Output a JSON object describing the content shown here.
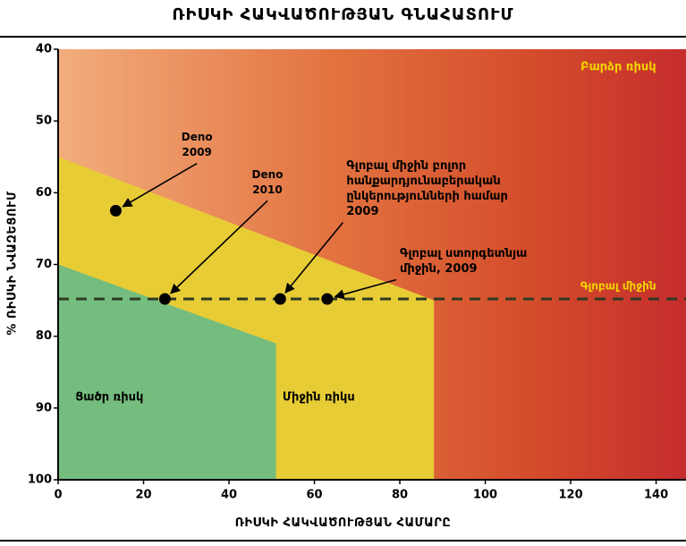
{
  "chart_data": {
    "type": "scatter",
    "title": "ՌԻՍԿԻ ՀԱԿՎԱԾՈՒԹՅԱՆ ԳՆԱՀԱՏՈՒՄ",
    "xlabel": "ՌԻՍԿԻ ՀԱԿՎԱԾՈՒԹՅԱՆ ՀԱՄԱՐԸ",
    "ylabel": "% ՌԻՍԿԻ ՆՎԱԶԵՑՈՒՄ",
    "xlim": [
      0,
      147
    ],
    "ylim": [
      40,
      100
    ],
    "y_inverted": true,
    "x_ticks": [
      0,
      20,
      40,
      60,
      80,
      100,
      120,
      140
    ],
    "y_ticks": [
      40,
      50,
      60,
      70,
      80,
      90,
      100
    ],
    "zones": [
      {
        "label": "Բարձր ռիսկ",
        "color": "#e06a3c"
      },
      {
        "label": "Միջին ռիկս",
        "color": "#e8cc36",
        "polygon": [
          [
            0,
            55
          ],
          [
            88,
            75
          ],
          [
            88,
            100
          ],
          [
            0,
            100
          ]
        ]
      },
      {
        "label": "Ցածր ռիսկ",
        "color": "#74bd7e",
        "polygon": [
          [
            0,
            70
          ],
          [
            51,
            81
          ],
          [
            51,
            100
          ],
          [
            0,
            100
          ]
        ]
      }
    ],
    "reference_line": {
      "label": "Գլոբալ միջին",
      "y": 74.8
    },
    "points": [
      {
        "label": [
          "Deno",
          "2009"
        ],
        "x": 13.5,
        "y": 62.5,
        "label_x": 32.5,
        "label_y": 52.3
      },
      {
        "label": [
          "Deno",
          "2010"
        ],
        "x": 25,
        "y": 74.8,
        "label_x": 49,
        "label_y": 57.5
      },
      {
        "label": [
          "Գլոբալ միջին բոլոր",
          "հանքարդյունաբերական",
          "ընկերությունների համար",
          "2009"
        ],
        "x": 52,
        "y": 74.8,
        "label_x": 67.5,
        "label_y": 56.3
      },
      {
        "label": [
          "Գլոբալ ստորգետնյա",
          "միջին, 2009"
        ],
        "x": 63,
        "y": 74.8,
        "label_x": 80,
        "label_y": 68.5
      }
    ]
  }
}
